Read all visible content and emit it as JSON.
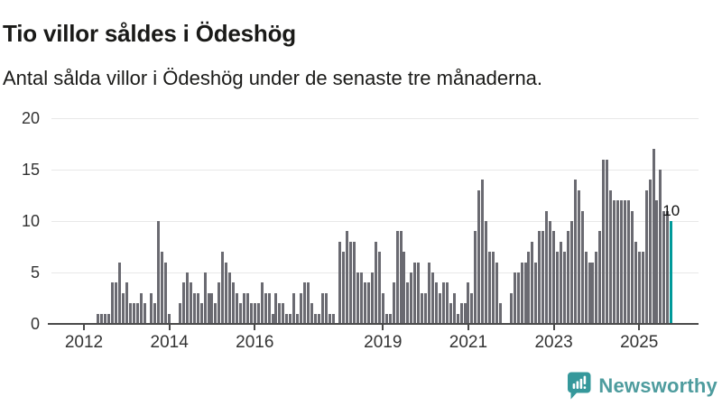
{
  "header": {
    "title": "Tio villor såldes i Ödeshög",
    "subtitle": "Antal sålda villor i Ödeshög under de senaste tre månaderna."
  },
  "chart_data": {
    "type": "bar",
    "title": "Tio villor såldes i Ödeshög",
    "subtitle": "Antal sålda villor i Ödeshög under de senaste tre månaderna.",
    "x_start_month": "2011-04",
    "x_end_month": "2025-10",
    "values": [
      0,
      0,
      0,
      0,
      0,
      0,
      0,
      0,
      0,
      0,
      0,
      0,
      0,
      1,
      1,
      1,
      1,
      4,
      4,
      6,
      3,
      4,
      2,
      2,
      2,
      3,
      2,
      0,
      3,
      2,
      10,
      7,
      6,
      1,
      0,
      0,
      2,
      4,
      5,
      4,
      3,
      3,
      2,
      5,
      3,
      3,
      2,
      4,
      7,
      6,
      5,
      4,
      3,
      2,
      3,
      3,
      2,
      2,
      2,
      4,
      3,
      3,
      1,
      3,
      2,
      2,
      1,
      1,
      3,
      1,
      3,
      4,
      4,
      2,
      1,
      1,
      3,
      3,
      1,
      1,
      0,
      8,
      7,
      9,
      8,
      8,
      5,
      5,
      4,
      4,
      5,
      8,
      7,
      3,
      1,
      1,
      4,
      9,
      9,
      7,
      4,
      5,
      6,
      6,
      3,
      3,
      6,
      5,
      4,
      3,
      4,
      4,
      2,
      3,
      1,
      2,
      2,
      4,
      3,
      9,
      13,
      14,
      10,
      7,
      7,
      6,
      2,
      0,
      0,
      3,
      5,
      5,
      6,
      6,
      7,
      8,
      6,
      9,
      9,
      11,
      10,
      9,
      7,
      8,
      7,
      9,
      10,
      14,
      13,
      11,
      7,
      6,
      6,
      7,
      9,
      16,
      16,
      13,
      12,
      12,
      12,
      12,
      12,
      11,
      8,
      7,
      7,
      13,
      14,
      17,
      12,
      15,
      11,
      11,
      10
    ],
    "highlight_last": true,
    "highlight_value_label": "10",
    "ylim": [
      0,
      20
    ],
    "y_ticks": [
      0,
      5,
      10,
      15,
      20
    ],
    "x_tick_years": [
      2012,
      2014,
      2016,
      2019,
      2021,
      2023,
      2025
    ],
    "grid": true,
    "legend": "none",
    "colors": {
      "bar": "#6a6a71",
      "highlight": "#009a9a",
      "gridline": "#e8e8e8",
      "axis": "#4a4a4a"
    }
  },
  "footer": {
    "brand": "Newsworthy",
    "brand_text_color": "#4e9c9e",
    "brand_icon_color": "#35989b",
    "brand_icon": "speech-bubble-bar-chart-icon"
  }
}
